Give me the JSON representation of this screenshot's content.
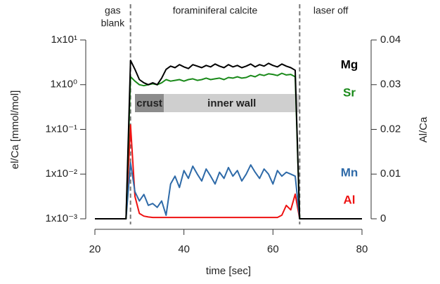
{
  "chart_data": {
    "type": "line",
    "xlabel": "time [sec]",
    "ylabel": "el/Ca [mmol/mol]",
    "y2label": "Al/Ca",
    "header_labels": [
      [
        "gas",
        "blank"
      ],
      [
        "foraminiferal calcite"
      ],
      [
        "laser off"
      ]
    ],
    "vlines": [
      28,
      66
    ],
    "zones": [
      {
        "label": "crust",
        "x": [
          29,
          35.5
        ],
        "color": "#8c8c8c"
      },
      {
        "label": "inner wall",
        "x": [
          35.5,
          66
        ],
        "color": "#cfcfcf"
      }
    ],
    "xlim": [
      20,
      80
    ],
    "xticks": [
      20,
      40,
      60,
      80
    ],
    "ylim": [
      0.001,
      10
    ],
    "log_y": true,
    "yticks": [
      {
        "value": 0.001,
        "label": "1x10⁻³"
      },
      {
        "value": 0.01,
        "label": "1x10⁻²"
      },
      {
        "value": 0.1,
        "label": "1x10⁻¹"
      },
      {
        "value": 1,
        "label": "1x10⁰"
      },
      {
        "value": 10,
        "label": "1x10¹"
      }
    ],
    "y2lim": [
      0,
      0.04
    ],
    "y2ticks": [
      0,
      0.01,
      0.02,
      0.03,
      0.04
    ],
    "x": [
      20,
      21,
      22,
      23,
      24,
      25,
      26,
      27,
      28,
      29,
      30,
      31,
      32,
      33,
      34,
      35,
      36,
      37,
      38,
      39,
      40,
      41,
      42,
      43,
      44,
      45,
      46,
      47,
      48,
      49,
      50,
      51,
      52,
      53,
      54,
      55,
      56,
      57,
      58,
      59,
      60,
      61,
      62,
      63,
      64,
      65,
      66,
      67,
      68,
      69,
      70,
      71,
      72,
      73,
      74,
      75,
      76,
      77,
      78,
      79,
      80
    ],
    "series": [
      {
        "name": "Mg",
        "color": "#000000",
        "values": [
          0.001,
          0.001,
          0.001,
          0.001,
          0.001,
          0.001,
          0.001,
          0.001,
          3.5,
          2.2,
          1.3,
          1.1,
          1.0,
          1.1,
          1.0,
          1.4,
          2.2,
          2.6,
          2.4,
          2.8,
          2.5,
          2.3,
          2.8,
          2.6,
          2.4,
          2.7,
          2.5,
          2.9,
          2.6,
          2.4,
          2.8,
          2.5,
          2.7,
          2.4,
          2.6,
          2.9,
          2.5,
          2.8,
          2.6,
          3.0,
          2.7,
          2.5,
          2.9,
          2.6,
          2.4,
          2.1,
          0.001,
          0.001,
          0.001,
          0.001,
          0.001,
          0.001,
          0.001,
          0.001,
          0.001,
          0.001,
          0.001,
          0.001,
          0.001,
          0.001,
          0.001
        ]
      },
      {
        "name": "Sr",
        "color": "#1a8a1a",
        "values": [
          0.001,
          0.001,
          0.001,
          0.001,
          0.001,
          0.001,
          0.001,
          0.001,
          1.5,
          1.2,
          1.0,
          0.95,
          1.0,
          1.05,
          1.0,
          1.1,
          1.3,
          1.2,
          1.25,
          1.3,
          1.2,
          1.3,
          1.35,
          1.25,
          1.3,
          1.4,
          1.3,
          1.35,
          1.4,
          1.3,
          1.45,
          1.4,
          1.5,
          1.4,
          1.45,
          1.6,
          1.5,
          1.7,
          1.6,
          1.75,
          1.7,
          1.6,
          1.8,
          1.65,
          1.7,
          1.5,
          0.001,
          0.001,
          0.001,
          0.001,
          0.001,
          0.001,
          0.001,
          0.001,
          0.001,
          0.001,
          0.001,
          0.001,
          0.001,
          0.001,
          0.001
        ]
      },
      {
        "name": "Mn",
        "color": "#2e6aa8",
        "values": [
          0.001,
          0.001,
          0.001,
          0.001,
          0.001,
          0.001,
          0.001,
          0.001,
          0.018,
          0.004,
          0.0025,
          0.0035,
          0.002,
          0.0022,
          0.0018,
          0.0025,
          0.0012,
          0.006,
          0.009,
          0.005,
          0.012,
          0.008,
          0.015,
          0.01,
          0.007,
          0.013,
          0.009,
          0.006,
          0.011,
          0.008,
          0.014,
          0.009,
          0.012,
          0.007,
          0.01,
          0.016,
          0.011,
          0.008,
          0.013,
          0.01,
          0.006,
          0.012,
          0.009,
          0.011,
          0.01,
          0.009,
          0.001,
          0.001,
          0.001,
          0.001,
          0.001,
          0.001,
          0.001,
          0.001,
          0.001,
          0.001,
          0.001,
          0.001,
          0.001,
          0.001,
          0.001
        ]
      },
      {
        "name": "Al",
        "color": "#ee1111",
        "axis": "y2",
        "values": [
          0,
          0,
          0,
          0,
          0,
          0,
          0,
          0,
          0.021,
          0.005,
          0.0012,
          0.0006,
          0.0004,
          0.0003,
          0.0003,
          0.0003,
          0.0003,
          0.0003,
          0.0003,
          0.0003,
          0.0003,
          0.0003,
          0.0003,
          0.0003,
          0.0003,
          0.0003,
          0.0003,
          0.0003,
          0.0003,
          0.0003,
          0.0003,
          0.0003,
          0.0003,
          0.0003,
          0.0003,
          0.0003,
          0.0003,
          0.0003,
          0.0003,
          0.0003,
          0.0003,
          0.0003,
          0.0008,
          0.003,
          0.002,
          0.0055,
          0,
          0,
          0,
          0,
          0,
          0,
          0,
          0,
          0,
          0,
          0,
          0,
          0,
          0,
          0
        ]
      }
    ]
  }
}
